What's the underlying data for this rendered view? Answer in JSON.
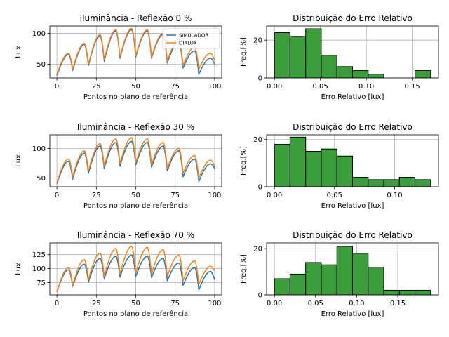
{
  "figure": {
    "background": "#ffffff"
  },
  "colors": {
    "simulador": "#1f77b4",
    "dialux": "#ff7f0e",
    "hist_fill": "#3a9e3a",
    "hist_edge": "#000000",
    "grid": "#b0b0b0"
  },
  "chart_data": [
    {
      "type": "line",
      "title": "Iluminância - Reflexão 0 %",
      "xlabel": "Pontos no plano de referência",
      "ylabel": "Lux",
      "xlim": [
        -4.5,
        104.5
      ],
      "ylim": [
        28,
        112
      ],
      "xticks": [
        0,
        25,
        50,
        75,
        100
      ],
      "yticks": [
        50,
        100
      ],
      "grid": true,
      "legend": {
        "position": "top-right",
        "entries": [
          "SIMULADOR",
          "DIALUX"
        ]
      },
      "segment_breaks": [
        0,
        10,
        20,
        30,
        40,
        50,
        60,
        70,
        80,
        90,
        100
      ],
      "series": [
        {
          "name": "SIMULADOR",
          "color": "#1f77b4",
          "segments": [
            {
              "start": 32,
              "peak": 66,
              "end": 40
            },
            {
              "start": 40,
              "peak": 82,
              "end": 48
            },
            {
              "start": 48,
              "peak": 96,
              "end": 55
            },
            {
              "start": 55,
              "peak": 104,
              "end": 60
            },
            {
              "start": 60,
              "peak": 106,
              "end": 62
            },
            {
              "start": 62,
              "peak": 104,
              "end": 60
            },
            {
              "start": 60,
              "peak": 98,
              "end": 52
            },
            {
              "start": 52,
              "peak": 86,
              "end": 44
            },
            {
              "start": 44,
              "peak": 72,
              "end": 34
            },
            {
              "start": 34,
              "peak": 60,
              "end": 50
            }
          ]
        },
        {
          "name": "DIALUX",
          "color": "#ff7f0e",
          "segments": [
            {
              "start": 34,
              "peak": 68,
              "end": 42
            },
            {
              "start": 42,
              "peak": 84,
              "end": 50
            },
            {
              "start": 50,
              "peak": 98,
              "end": 58
            },
            {
              "start": 58,
              "peak": 106,
              "end": 62
            },
            {
              "start": 62,
              "peak": 108,
              "end": 64
            },
            {
              "start": 64,
              "peak": 106,
              "end": 62
            },
            {
              "start": 62,
              "peak": 100,
              "end": 55
            },
            {
              "start": 55,
              "peak": 90,
              "end": 48
            },
            {
              "start": 48,
              "peak": 78,
              "end": 42
            },
            {
              "start": 42,
              "peak": 68,
              "end": 56
            }
          ]
        }
      ]
    },
    {
      "type": "bar",
      "title": "Distribuição do Erro Relativo",
      "xlabel": "Erro Relativo [lux]",
      "ylabel": "Freq.[%]",
      "xlim": [
        -0.0085,
        0.1785
      ],
      "ylim": [
        0,
        27.5
      ],
      "xticks": [
        0.0,
        0.05,
        0.1,
        0.15
      ],
      "xtick_labels": [
        "0.00",
        "0.05",
        "0.10",
        "0.15"
      ],
      "yticks": [
        0,
        20
      ],
      "grid": true,
      "bin_edges": [
        0,
        0.017,
        0.034,
        0.051,
        0.068,
        0.085,
        0.102,
        0.119,
        0.136,
        0.153,
        0.17
      ],
      "values": [
        24,
        22,
        26,
        12,
        6,
        4,
        2,
        0,
        0,
        4
      ]
    },
    {
      "type": "line",
      "title": "Iluminância - Reflexão 30 %",
      "xlabel": "Pontos no plano de referência",
      "ylabel": "Lux",
      "xlim": [
        -4.5,
        104.5
      ],
      "ylim": [
        35,
        123
      ],
      "xticks": [
        0,
        25,
        50,
        75,
        100
      ],
      "yticks": [
        50,
        100
      ],
      "grid": true,
      "segment_breaks": [
        0,
        10,
        20,
        30,
        40,
        50,
        60,
        70,
        80,
        90,
        100
      ],
      "series": [
        {
          "name": "SIMULADOR",
          "color": "#1f77b4",
          "segments": [
            {
              "start": 40,
              "peak": 78,
              "end": 48
            },
            {
              "start": 48,
              "peak": 92,
              "end": 58
            },
            {
              "start": 58,
              "peak": 104,
              "end": 66
            },
            {
              "start": 66,
              "peak": 110,
              "end": 70
            },
            {
              "start": 70,
              "peak": 112,
              "end": 72
            },
            {
              "start": 72,
              "peak": 110,
              "end": 68
            },
            {
              "start": 68,
              "peak": 104,
              "end": 62
            },
            {
              "start": 62,
              "peak": 96,
              "end": 52
            },
            {
              "start": 52,
              "peak": 82,
              "end": 44
            },
            {
              "start": 44,
              "peak": 74,
              "end": 66
            }
          ]
        },
        {
          "name": "DIALUX",
          "color": "#ff7f0e",
          "segments": [
            {
              "start": 42,
              "peak": 82,
              "end": 52
            },
            {
              "start": 52,
              "peak": 96,
              "end": 62
            },
            {
              "start": 62,
              "peak": 108,
              "end": 70
            },
            {
              "start": 70,
              "peak": 116,
              "end": 74
            },
            {
              "start": 74,
              "peak": 118,
              "end": 76
            },
            {
              "start": 76,
              "peak": 116,
              "end": 72
            },
            {
              "start": 72,
              "peak": 110,
              "end": 66
            },
            {
              "start": 66,
              "peak": 100,
              "end": 58
            },
            {
              "start": 58,
              "peak": 88,
              "end": 50
            },
            {
              "start": 50,
              "peak": 80,
              "end": 70
            }
          ]
        }
      ]
    },
    {
      "type": "bar",
      "title": "Distribuição do Erro Relativo",
      "xlabel": "Erro Relativo [lux]",
      "ylabel": "Freq.[%]",
      "xlim": [
        -0.0065,
        0.1365
      ],
      "ylim": [
        0,
        22
      ],
      "xticks": [
        0.0,
        0.05,
        0.1
      ],
      "xtick_labels": [
        "0.00",
        "0.05",
        "0.10"
      ],
      "yticks": [
        0,
        20
      ],
      "grid": true,
      "bin_edges": [
        0,
        0.013,
        0.026,
        0.039,
        0.052,
        0.065,
        0.078,
        0.091,
        0.104,
        0.117,
        0.13
      ],
      "values": [
        18,
        21,
        15,
        16,
        13,
        4,
        3,
        3,
        4,
        3
      ]
    },
    {
      "type": "line",
      "title": "Iluminância - Reflexão 70 %",
      "xlabel": "Pontos no plano de referência",
      "ylabel": "Lux",
      "xlim": [
        -4.5,
        104.5
      ],
      "ylim": [
        53,
        146
      ],
      "xticks": [
        0,
        25,
        50,
        75,
        100
      ],
      "yticks": [
        75,
        100,
        125
      ],
      "grid": true,
      "segment_breaks": [
        0,
        10,
        20,
        30,
        40,
        50,
        60,
        70,
        80,
        90,
        100
      ],
      "series": [
        {
          "name": "SIMULADOR",
          "color": "#1f77b4",
          "segments": [
            {
              "start": 58,
              "peak": 98,
              "end": 68
            },
            {
              "start": 68,
              "peak": 108,
              "end": 76
            },
            {
              "start": 76,
              "peak": 118,
              "end": 82
            },
            {
              "start": 82,
              "peak": 122,
              "end": 85
            },
            {
              "start": 85,
              "peak": 124,
              "end": 86
            },
            {
              "start": 86,
              "peak": 122,
              "end": 84
            },
            {
              "start": 84,
              "peak": 118,
              "end": 78
            },
            {
              "start": 78,
              "peak": 110,
              "end": 70
            },
            {
              "start": 70,
              "peak": 102,
              "end": 62
            },
            {
              "start": 62,
              "peak": 95,
              "end": 80
            }
          ]
        },
        {
          "name": "DIALUX",
          "color": "#ff7f0e",
          "segments": [
            {
              "start": 58,
              "peak": 102,
              "end": 70
            },
            {
              "start": 70,
              "peak": 116,
              "end": 80
            },
            {
              "start": 80,
              "peak": 128,
              "end": 86
            },
            {
              "start": 86,
              "peak": 136,
              "end": 90
            },
            {
              "start": 90,
              "peak": 140,
              "end": 92
            },
            {
              "start": 92,
              "peak": 138,
              "end": 90
            },
            {
              "start": 90,
              "peak": 134,
              "end": 86
            },
            {
              "start": 86,
              "peak": 124,
              "end": 78
            },
            {
              "start": 78,
              "peak": 114,
              "end": 72
            },
            {
              "start": 72,
              "peak": 104,
              "end": 96
            }
          ]
        }
      ]
    },
    {
      "type": "bar",
      "title": "Distribuição do Erro Relativo",
      "xlabel": "Erro Relativo [lux]",
      "ylabel": "Freq.[%]",
      "xlim": [
        -0.0095,
        0.1995
      ],
      "ylim": [
        0,
        22.5
      ],
      "xticks": [
        0.0,
        0.05,
        0.1,
        0.15
      ],
      "xtick_labels": [
        "0.00",
        "0.05",
        "0.10",
        "0.15"
      ],
      "yticks": [
        0,
        20
      ],
      "grid": true,
      "bin_edges": [
        0,
        0.019,
        0.038,
        0.057,
        0.076,
        0.095,
        0.114,
        0.133,
        0.152,
        0.171,
        0.19
      ],
      "values": [
        7,
        9,
        14,
        13,
        21,
        18,
        12,
        2,
        2,
        2
      ]
    }
  ]
}
